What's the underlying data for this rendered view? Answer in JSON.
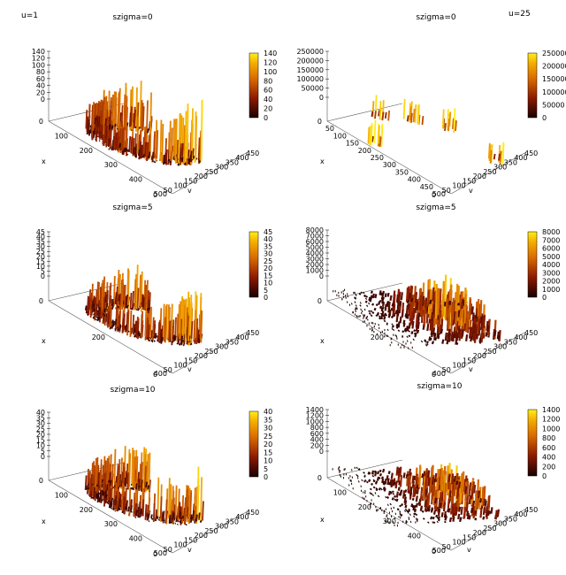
{
  "corner_labels": {
    "left": "u=1",
    "right": "u=25"
  },
  "colors": {
    "low": "#3d0000",
    "mid_low": "#8b1a00",
    "mid": "#d86a00",
    "mid_high": "#f5b000",
    "high": "#ffef1a"
  },
  "chart_data": [
    {
      "type": "surface3d",
      "title": "szigma=0",
      "xlabel": "x",
      "ylabel": "v",
      "x_ticks": [
        "0",
        "100",
        "200",
        "300",
        "400",
        "500"
      ],
      "y_ticks": [
        "0",
        "50",
        "100",
        "150",
        "200",
        "250",
        "300",
        "350",
        "400",
        "450"
      ],
      "z_ticks": [
        "0",
        "20",
        "40",
        "60",
        "80",
        "100",
        "120",
        "140"
      ],
      "colorbar_ticks": [
        "0",
        "20",
        "40",
        "60",
        "80",
        "100",
        "120",
        "140"
      ],
      "zlim": [
        0,
        140
      ],
      "shape": "ring",
      "peak_fraction": 0.85
    },
    {
      "type": "surface3d",
      "title": "szigma=0",
      "xlabel": "x",
      "ylabel": "v",
      "x_ticks": [
        "0",
        "50",
        "100",
        "150",
        "200",
        "250",
        "300",
        "350",
        "400",
        "450",
        "500"
      ],
      "y_ticks": [
        "0",
        "50",
        "100",
        "150",
        "200",
        "250",
        "300",
        "350",
        "400",
        "450"
      ],
      "z_ticks": [
        "0",
        "50000",
        "100000",
        "150000",
        "200000",
        "250000"
      ],
      "colorbar_ticks": [
        "0",
        "50000",
        "100000",
        "150000",
        "200000",
        "250000"
      ],
      "zlim": [
        0,
        250000
      ],
      "shape": "spikes",
      "peak_fraction": 0.3
    },
    {
      "type": "surface3d",
      "title": "szigma=5",
      "xlabel": "x",
      "ylabel": "v",
      "x_ticks": [
        "0",
        "200",
        "400"
      ],
      "y_ticks": [
        "0",
        "50",
        "100",
        "150",
        "200",
        "250",
        "300",
        "350",
        "400",
        "450"
      ],
      "z_ticks": [
        "0",
        "5",
        "10",
        "15",
        "20",
        "25",
        "30",
        "35",
        "40",
        "45"
      ],
      "colorbar_ticks": [
        "0",
        "5",
        "10",
        "15",
        "20",
        "25",
        "30",
        "35",
        "40",
        "45"
      ],
      "zlim": [
        0,
        45
      ],
      "shape": "ring",
      "peak_fraction": 0.85
    },
    {
      "type": "surface3d",
      "title": "szigma=5",
      "xlabel": "x",
      "ylabel": "v",
      "x_ticks": [
        "0",
        "200",
        "400"
      ],
      "y_ticks": [
        "0",
        "50",
        "100",
        "150",
        "200",
        "250",
        "300",
        "350",
        "400",
        "450"
      ],
      "z_ticks": [
        "0",
        "1000",
        "2000",
        "3000",
        "4000",
        "5000",
        "6000",
        "7000",
        "8000"
      ],
      "colorbar_ticks": [
        "0",
        "1000",
        "2000",
        "3000",
        "4000",
        "5000",
        "6000",
        "7000",
        "8000"
      ],
      "zlim": [
        0,
        8000
      ],
      "shape": "mound",
      "peak_fraction": 0.7
    },
    {
      "type": "surface3d",
      "title": "szigma=10",
      "xlabel": "x",
      "ylabel": "v",
      "x_ticks": [
        "0",
        "100",
        "200",
        "300",
        "400",
        "500"
      ],
      "y_ticks": [
        "0",
        "50",
        "100",
        "150",
        "200",
        "250",
        "300",
        "350",
        "400",
        "450"
      ],
      "z_ticks": [
        "0",
        "5",
        "10",
        "15",
        "20",
        "25",
        "30",
        "35",
        "40"
      ],
      "colorbar_ticks": [
        "0",
        "5",
        "10",
        "15",
        "20",
        "25",
        "30",
        "35",
        "40"
      ],
      "zlim": [
        0,
        40
      ],
      "shape": "ring",
      "peak_fraction": 0.85
    },
    {
      "type": "surface3d",
      "title": "szigma=10",
      "xlabel": "x",
      "ylabel": "v",
      "x_ticks": [
        "0",
        "100",
        "200",
        "300",
        "400",
        "500"
      ],
      "y_ticks": [
        "0",
        "50",
        "100",
        "150",
        "200",
        "250",
        "300",
        "350",
        "400",
        "450"
      ],
      "z_ticks": [
        "0",
        "200",
        "400",
        "600",
        "800",
        "1000",
        "1200",
        "1400"
      ],
      "colorbar_ticks": [
        "0",
        "200",
        "400",
        "600",
        "800",
        "1000",
        "1200",
        "1400"
      ],
      "zlim": [
        0,
        1400
      ],
      "shape": "mound",
      "peak_fraction": 0.6
    }
  ]
}
